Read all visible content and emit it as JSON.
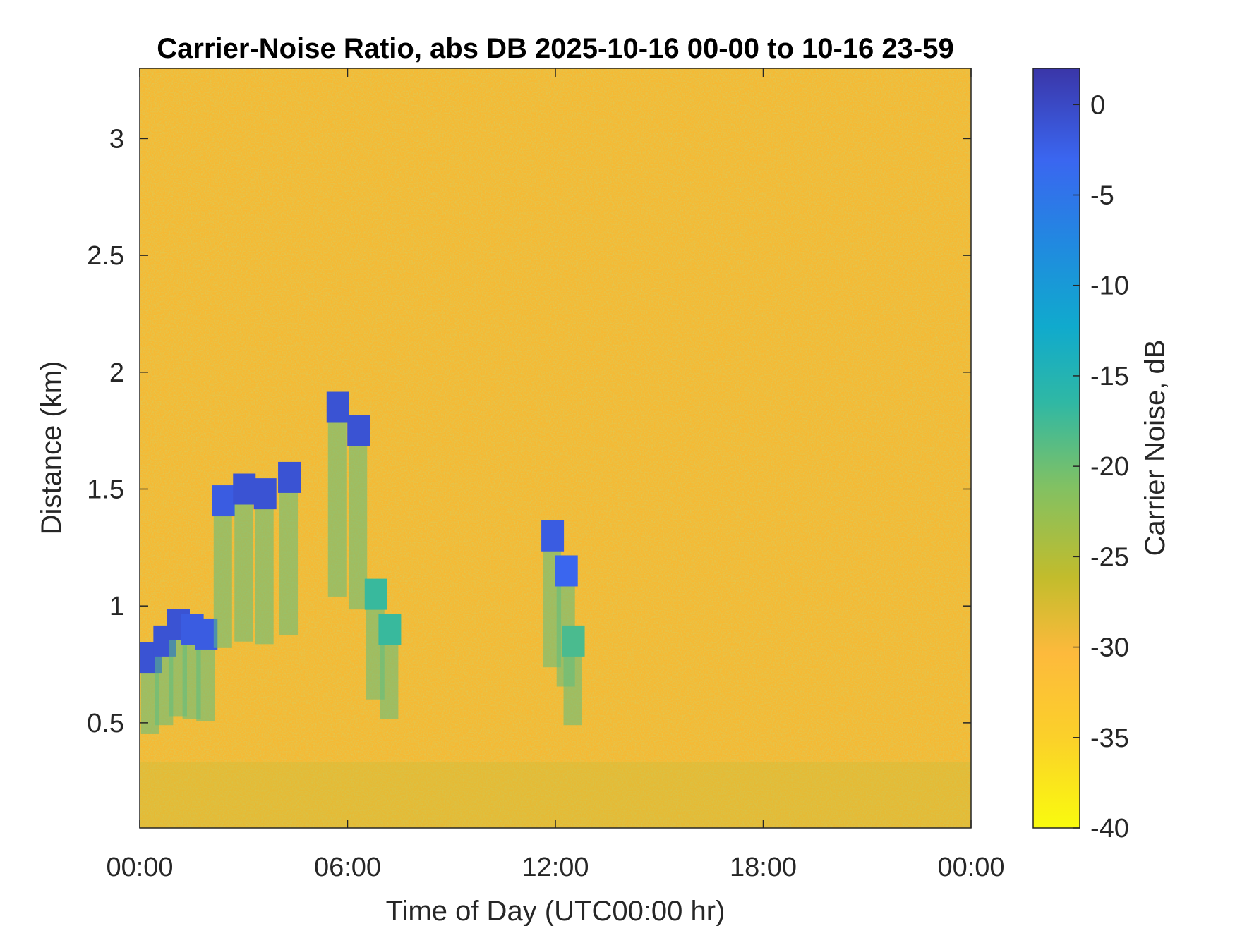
{
  "chart_data": {
    "type": "heatmap",
    "title": "Carrier-Noise Ratio, abs DB 2025-10-16 00-00 to 10-16 23-59",
    "xlabel": "Time of Day (UTC00:00 hr)",
    "ylabel": "Distance (km)",
    "x_ticks": [
      "00:00",
      "06:00",
      "12:00",
      "18:00",
      "00:00"
    ],
    "x_range_hours": [
      0,
      24
    ],
    "y_ticks": [
      "0.5",
      "1",
      "1.5",
      "2",
      "2.5",
      "3"
    ],
    "y_range_km": [
      0.05,
      3.3
    ],
    "colorbar": {
      "label": "Carrier Noise, dB",
      "ticks": [
        "0",
        "-5",
        "-10",
        "-15",
        "-20",
        "-25",
        "-30",
        "-35",
        "-40"
      ],
      "range": [
        -40,
        2
      ],
      "colormap": "parula"
    },
    "background_value_db": -34,
    "features": [
      {
        "t_hours": 0.3,
        "dist_km": 0.78,
        "value_db": -1
      },
      {
        "t_hours": 0.7,
        "dist_km": 0.85,
        "value_db": -1
      },
      {
        "t_hours": 1.1,
        "dist_km": 0.92,
        "value_db": -1
      },
      {
        "t_hours": 1.5,
        "dist_km": 0.9,
        "value_db": -2
      },
      {
        "t_hours": 1.9,
        "dist_km": 0.88,
        "value_db": -2
      },
      {
        "t_hours": 2.4,
        "dist_km": 1.45,
        "value_db": -2
      },
      {
        "t_hours": 3.0,
        "dist_km": 1.5,
        "value_db": -1
      },
      {
        "t_hours": 3.6,
        "dist_km": 1.48,
        "value_db": -1
      },
      {
        "t_hours": 4.3,
        "dist_km": 1.55,
        "value_db": -1
      },
      {
        "t_hours": 5.7,
        "dist_km": 1.85,
        "value_db": -1
      },
      {
        "t_hours": 6.3,
        "dist_km": 1.75,
        "value_db": -1
      },
      {
        "t_hours": 6.8,
        "dist_km": 1.05,
        "value_db": -17
      },
      {
        "t_hours": 7.2,
        "dist_km": 0.9,
        "value_db": -17
      },
      {
        "t_hours": 11.9,
        "dist_km": 1.3,
        "value_db": -2
      },
      {
        "t_hours": 12.3,
        "dist_km": 1.15,
        "value_db": -3
      },
      {
        "t_hours": 12.5,
        "dist_km": 0.85,
        "value_db": -18
      }
    ]
  }
}
